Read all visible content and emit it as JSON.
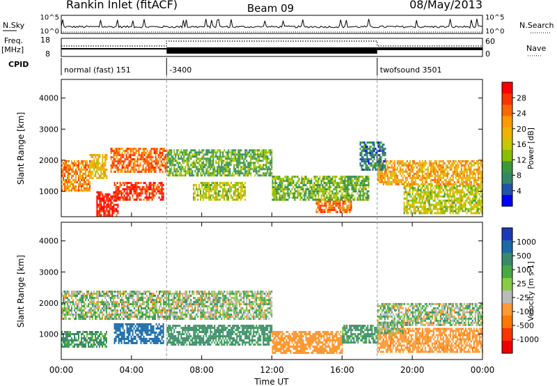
{
  "header": {
    "station": "Rankin Inlet (fitACF)",
    "beam": "Beam 09",
    "date": "08/May/2013"
  },
  "noise_panel": {
    "left_label": "N.Sky",
    "left_tick_top": "10^5",
    "left_tick_bottom": "10^0",
    "right_label": "N.Search",
    "right_tick_top": "10^5",
    "right_tick_bottom": "10^0"
  },
  "freq_panel": {
    "left_label_line1": "Freq.",
    "left_label_line2": "[MHz]",
    "left_tick_top": "18",
    "left_tick_bottom": "8",
    "right_label": "Nave",
    "right_tick_top": "60",
    "right_tick_bottom": "0"
  },
  "cpid": {
    "label": "CPID",
    "segments": [
      {
        "text": "normal (fast) 151",
        "start_hour": 0
      },
      {
        "text": "-3400",
        "start_hour": 6
      },
      {
        "text": "twofsound 3501",
        "start_hour": 18
      }
    ]
  },
  "time_axis": {
    "title": "Time UT",
    "ticks": [
      "00:00",
      "04:00",
      "08:00",
      "12:00",
      "16:00",
      "20:00",
      "00:00"
    ]
  },
  "power_legend": {
    "title": "Power [dB]",
    "ticks": [
      "28",
      "24",
      "20",
      "16",
      "12",
      "8",
      "4"
    ],
    "colors": [
      "#ff0000",
      "#ff3300",
      "#ff6600",
      "#ff9900",
      "#f0b400",
      "#c8c800",
      "#88c000",
      "#3a9a3a",
      "#338866",
      "#2255aa",
      "#0000ff"
    ]
  },
  "velocity_legend": {
    "title": "Velocity [m s-1]",
    "ticks": [
      "1000",
      "500",
      "100",
      "25",
      "-25",
      "-100",
      "-500",
      "-1000"
    ],
    "colors": [
      "#1a3ab8",
      "#1a6aa8",
      "#3a8a6a",
      "#44aa44",
      "#88cc44",
      "#bbbbbb",
      "#ff9933",
      "#ff7700",
      "#ff3300",
      "#ee0000"
    ]
  },
  "chart_data": [
    {
      "type": "heatmap",
      "name": "power",
      "title": "",
      "xlabel": "",
      "ylabel": "Slant Range [km]",
      "xlim": [
        0,
        24
      ],
      "ylim": [
        180,
        4600
      ],
      "yticks": [
        "1000",
        "2000",
        "3000",
        "4000"
      ],
      "colorbar": {
        "label": "Power [dB]",
        "range": [
          0,
          30
        ]
      },
      "regions": [
        {
          "t0": 0.0,
          "t1": 1.6,
          "r0": 1050,
          "r1": 2000,
          "value": 22
        },
        {
          "t0": 1.6,
          "t1": 2.6,
          "r0": 1400,
          "r1": 2200,
          "value": 18
        },
        {
          "t0": 2.8,
          "t1": 6.0,
          "r0": 1600,
          "r1": 2400,
          "value": 24
        },
        {
          "t0": 3.0,
          "t1": 5.8,
          "r0": 700,
          "r1": 1300,
          "value": 27
        },
        {
          "t0": 2.0,
          "t1": 3.2,
          "r0": 200,
          "r1": 1000,
          "value": 29
        },
        {
          "t0": 6.0,
          "t1": 12.0,
          "r0": 1500,
          "r1": 2350,
          "value": 10
        },
        {
          "t0": 7.5,
          "t1": 10.5,
          "r0": 700,
          "r1": 1300,
          "value": 14
        },
        {
          "t0": 12.0,
          "t1": 17.5,
          "r0": 700,
          "r1": 1500,
          "value": 11
        },
        {
          "t0": 14.5,
          "t1": 16.5,
          "r0": 300,
          "r1": 700,
          "value": 24
        },
        {
          "t0": 18.0,
          "t1": 24.0,
          "r0": 1200,
          "r1": 2000,
          "value": 20
        },
        {
          "t0": 19.5,
          "t1": 24.0,
          "r0": 300,
          "r1": 1200,
          "value": 14
        },
        {
          "t0": 17.0,
          "t1": 18.5,
          "r0": 1700,
          "r1": 2600,
          "value": 6
        }
      ]
    },
    {
      "type": "heatmap",
      "name": "velocity",
      "title": "",
      "xlabel": "Time UT",
      "ylabel": "Slant Range [km]",
      "xlim": [
        0,
        24
      ],
      "ylim": [
        180,
        4600
      ],
      "yticks": [
        "1000",
        "2000",
        "3000",
        "4000"
      ],
      "colorbar": {
        "label": "Velocity [m s-1]",
        "range": [
          -1000,
          1000
        ]
      },
      "regions": [
        {
          "t0": 0.0,
          "t1": 6.0,
          "r0": 1500,
          "r1": 2400,
          "value": 0
        },
        {
          "t0": 0.0,
          "t1": 2.6,
          "r0": 600,
          "r1": 1100,
          "value": 150
        },
        {
          "t0": 3.0,
          "t1": 5.8,
          "r0": 700,
          "r1": 1350,
          "value": 800
        },
        {
          "t0": 6.0,
          "t1": 12.0,
          "r0": 1500,
          "r1": 2400,
          "value": 0
        },
        {
          "t0": 6.0,
          "t1": 12.0,
          "r0": 650,
          "r1": 1300,
          "value": 200
        },
        {
          "t0": 12.0,
          "t1": 16.0,
          "r0": 400,
          "r1": 1100,
          "value": -300
        },
        {
          "t0": 16.0,
          "t1": 18.0,
          "r0": 700,
          "r1": 1300,
          "value": 150
        },
        {
          "t0": 18.0,
          "t1": 24.0,
          "r0": 1300,
          "r1": 2000,
          "value": 0
        },
        {
          "t0": 18.0,
          "t1": 24.0,
          "r0": 400,
          "r1": 1200,
          "value": -400
        },
        {
          "t0": 18.0,
          "t1": 19.5,
          "r0": 1000,
          "r1": 1400,
          "value": 30
        }
      ]
    }
  ]
}
